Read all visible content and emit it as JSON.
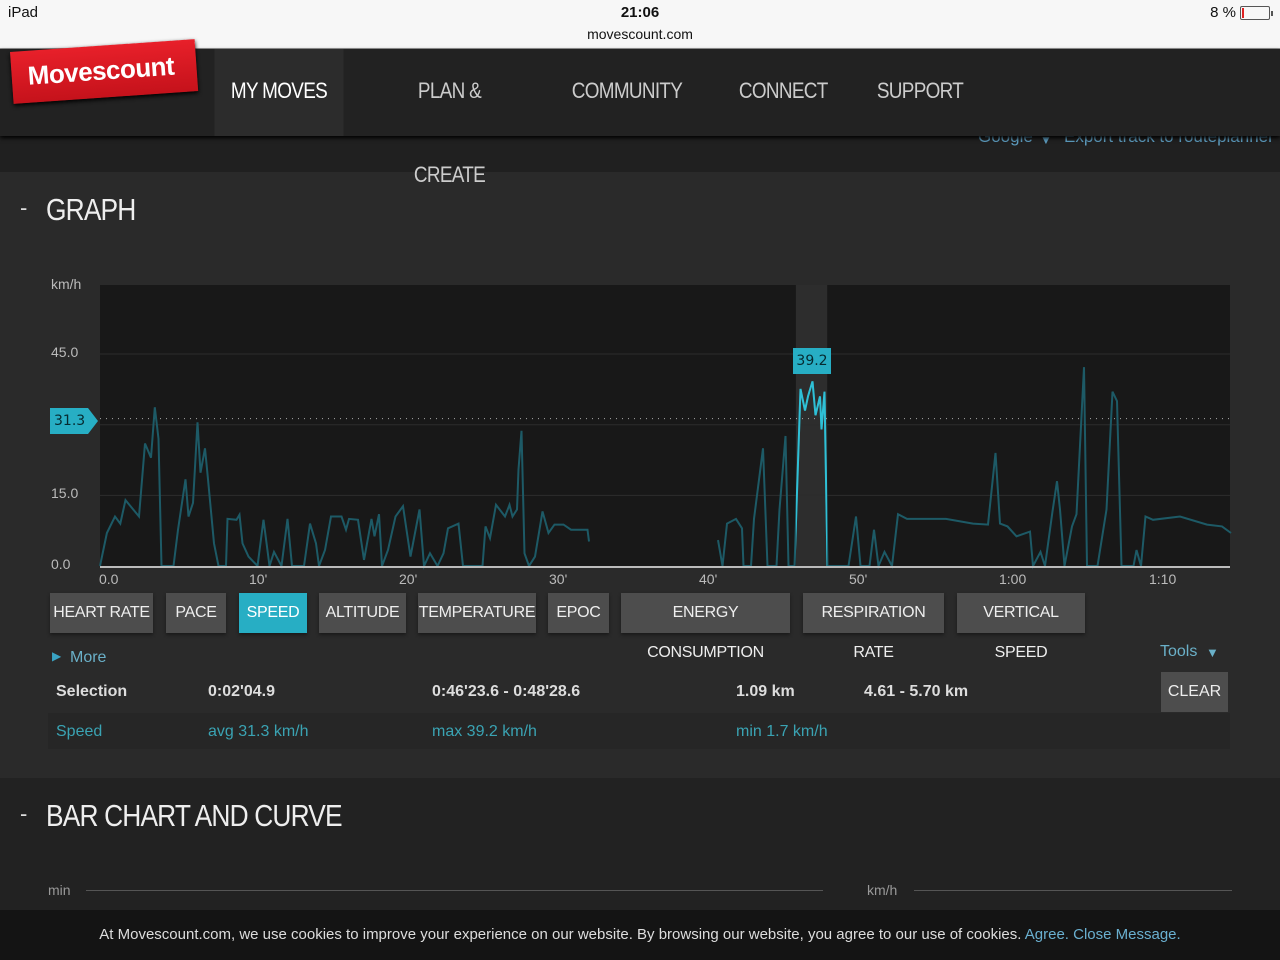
{
  "statusbar": {
    "device": "iPad",
    "time": "21:06",
    "url": "movescount.com",
    "battery": "8 %"
  },
  "nav": {
    "logo": "Movescount",
    "items": [
      {
        "label": "MY MOVES",
        "active": true
      },
      {
        "label": "PLAN & CREATE"
      },
      {
        "label": "COMMUNITY"
      },
      {
        "label": "CONNECT"
      },
      {
        "label": "SUPPORT"
      }
    ]
  },
  "map_tools": {
    "map_type": "Google",
    "export": "Export track to routeplanner"
  },
  "graph": {
    "collapse": "-",
    "title": "GRAPH",
    "avg_marker": "31.3",
    "selection_marker": "39.2",
    "measures": [
      {
        "label": "HEART RATE"
      },
      {
        "label": "PACE"
      },
      {
        "label": "SPEED",
        "active": true
      },
      {
        "label": "ALTITUDE"
      },
      {
        "label": "TEMPERATURE"
      },
      {
        "label": "EPOC"
      },
      {
        "label": "ENERGY CONSUMPTION"
      },
      {
        "label": "RESPIRATION RATE"
      },
      {
        "label": "VERTICAL SPEED"
      }
    ],
    "more": "More",
    "tools": "Tools",
    "selection": {
      "label": "Selection",
      "duration": "0:02'04.9",
      "time_range": "0:46'23.6 - 0:48'28.6",
      "distance": "1.09 km",
      "distance_range": "4.61 - 5.70 km",
      "clear": "CLEAR"
    },
    "speed": {
      "label": "Speed",
      "avg": "avg 31.3 km/h",
      "max": "max 39.2 km/h",
      "min": "min 1.7 km/h"
    },
    "colors": {
      "accent": "#27aec4",
      "line": "#1d5a66",
      "selected_line": "#2fc0d6"
    }
  },
  "chart_data": {
    "type": "line",
    "ylabel": "km/h",
    "xlim": [
      0,
      75.4
    ],
    "ylim": [
      0,
      60
    ],
    "y_ticks": [
      {
        "v": 0,
        "label": "0.0"
      },
      {
        "v": 15,
        "label": "15.0"
      },
      {
        "v": 45,
        "label": "45.0"
      }
    ],
    "grid_y": [
      15,
      30,
      45
    ],
    "x_ticks": [
      {
        "v": 0,
        "label": "0.0"
      },
      {
        "v": 10,
        "label": "10'"
      },
      {
        "v": 20,
        "label": "20'"
      },
      {
        "v": 30,
        "label": "30'"
      },
      {
        "v": 40,
        "label": "40'"
      },
      {
        "v": 50,
        "label": "50'"
      },
      {
        "v": 60,
        "label": "1:00"
      },
      {
        "v": 70,
        "label": "1:10"
      }
    ],
    "avg_line": 31.3,
    "selection_x": [
      46.39,
      48.48
    ],
    "selection_max": 39.2,
    "segments": [
      [
        [
          0,
          0
        ],
        [
          0.46,
          7
        ],
        [
          1,
          10.5
        ],
        [
          1.35,
          9
        ],
        [
          1.7,
          14
        ],
        [
          2.6,
          10.5
        ],
        [
          3,
          26
        ],
        [
          3.4,
          23
        ],
        [
          3.65,
          33.7
        ],
        [
          3.9,
          27
        ],
        [
          4.1,
          0
        ],
        [
          4.9,
          0
        ],
        [
          5.2,
          7.7
        ],
        [
          5.7,
          18.4
        ],
        [
          5.9,
          10.5
        ],
        [
          6.2,
          13.4
        ],
        [
          6.5,
          30.5
        ],
        [
          6.7,
          19.8
        ],
        [
          7,
          25
        ],
        [
          7.2,
          18.4
        ],
        [
          7.6,
          4.8
        ],
        [
          7.9,
          0
        ],
        [
          8.4,
          0
        ],
        [
          8.5,
          10
        ],
        [
          9.1,
          9.8
        ],
        [
          9.3,
          10.9
        ],
        [
          9.5,
          4.8
        ],
        [
          9.9,
          2
        ],
        [
          10.5,
          0
        ],
        [
          10.9,
          9.8
        ],
        [
          11.3,
          0
        ],
        [
          11.6,
          3
        ],
        [
          12.1,
          0
        ],
        [
          12.5,
          10
        ],
        [
          12.8,
          0
        ],
        [
          13.6,
          0
        ],
        [
          14,
          9
        ],
        [
          14.4,
          4.8
        ],
        [
          14.6,
          0
        ],
        [
          15,
          3.4
        ],
        [
          15.4,
          10.5
        ],
        [
          16.1,
          10.5
        ],
        [
          16.4,
          7.7
        ],
        [
          16.6,
          10
        ],
        [
          17.2,
          9.8
        ],
        [
          17.6,
          1.3
        ],
        [
          18.1,
          10
        ],
        [
          18.3,
          6.3
        ],
        [
          18.6,
          11
        ],
        [
          18.8,
          0
        ],
        [
          19.2,
          3.4
        ],
        [
          19.7,
          10.5
        ],
        [
          20.2,
          12.7
        ],
        [
          20.7,
          2
        ],
        [
          21.3,
          12
        ],
        [
          21.6,
          0
        ],
        [
          22,
          2.7
        ],
        [
          22.5,
          0
        ],
        [
          22.9,
          2.7
        ],
        [
          23.2,
          8
        ],
        [
          23.9,
          9
        ],
        [
          24.2,
          0
        ],
        [
          25.5,
          0
        ],
        [
          25.7,
          8.4
        ],
        [
          26,
          5.9
        ],
        [
          26.4,
          13
        ],
        [
          27,
          10.5
        ],
        [
          27.3,
          13
        ],
        [
          27.5,
          10.5
        ],
        [
          27.8,
          12
        ],
        [
          27.9,
          20.5
        ],
        [
          28.1,
          28.7
        ],
        [
          28.3,
          2.7
        ],
        [
          28.6,
          0
        ],
        [
          29,
          2
        ],
        [
          29.5,
          11.6
        ],
        [
          29.9,
          7
        ],
        [
          30.3,
          8.8
        ],
        [
          30.9,
          8.8
        ],
        [
          31.4,
          7.7
        ],
        [
          32.5,
          7.7
        ],
        [
          32.6,
          5.2
        ]
      ],
      [
        [
          41.2,
          5.5
        ],
        [
          41.5,
          0
        ],
        [
          41.8,
          9
        ],
        [
          42.4,
          10
        ],
        [
          42.8,
          8
        ],
        [
          42.9,
          0
        ],
        [
          43.4,
          0
        ],
        [
          43.6,
          10
        ],
        [
          44.2,
          25
        ],
        [
          44.5,
          0
        ],
        [
          45.1,
          0
        ],
        [
          45.3,
          12
        ],
        [
          45.7,
          27.6
        ],
        [
          45.9,
          0
        ],
        [
          46.3,
          0
        ],
        [
          46.7,
          37.6
        ],
        [
          47,
          33
        ],
        [
          47.2,
          36
        ],
        [
          47.5,
          39.2
        ],
        [
          47.7,
          32
        ],
        [
          48,
          36
        ],
        [
          48.1,
          29
        ],
        [
          48.3,
          37
        ],
        [
          48.5,
          0
        ],
        [
          49.9,
          0
        ],
        [
          50.4,
          10.5
        ],
        [
          50.7,
          0
        ],
        [
          51.3,
          0
        ],
        [
          51.6,
          7.7
        ],
        [
          51.9,
          0
        ],
        [
          52.3,
          3
        ],
        [
          52.8,
          0
        ],
        [
          53.2,
          11
        ],
        [
          53.8,
          10
        ],
        [
          56.4,
          10
        ],
        [
          58.2,
          9
        ],
        [
          59.2,
          8.8
        ],
        [
          59.7,
          24
        ],
        [
          60,
          9
        ],
        [
          60.5,
          8.4
        ],
        [
          61.1,
          6.3
        ],
        [
          62,
          7.3
        ],
        [
          62.2,
          0
        ],
        [
          62.7,
          3
        ],
        [
          63,
          0
        ],
        [
          63.5,
          11.6
        ],
        [
          63.8,
          18
        ],
        [
          64,
          12
        ],
        [
          64.3,
          0
        ],
        [
          64.8,
          8.4
        ],
        [
          65.1,
          11
        ],
        [
          65.6,
          42.2
        ],
        [
          65.8,
          0
        ],
        [
          66.5,
          0
        ],
        [
          67.1,
          12
        ],
        [
          67.5,
          37
        ],
        [
          67.8,
          35
        ],
        [
          68.1,
          0
        ],
        [
          68.9,
          0
        ],
        [
          69.1,
          3.4
        ],
        [
          69.4,
          0
        ],
        [
          69.7,
          10.5
        ],
        [
          70.2,
          9.8
        ],
        [
          72,
          10.5
        ],
        [
          73.8,
          8.8
        ],
        [
          74.8,
          8.4
        ],
        [
          75.4,
          7
        ]
      ]
    ]
  },
  "barchart": {
    "collapse": "-",
    "title": "BAR CHART AND CURVE",
    "left_unit": "min",
    "right_unit": "km/h"
  },
  "cookie": {
    "text": "At Movescount.com, we use cookies to improve your experience on our website. By browsing our website, you agree to our use of cookies.",
    "agree": "Agree.",
    "close": "Close Message."
  }
}
